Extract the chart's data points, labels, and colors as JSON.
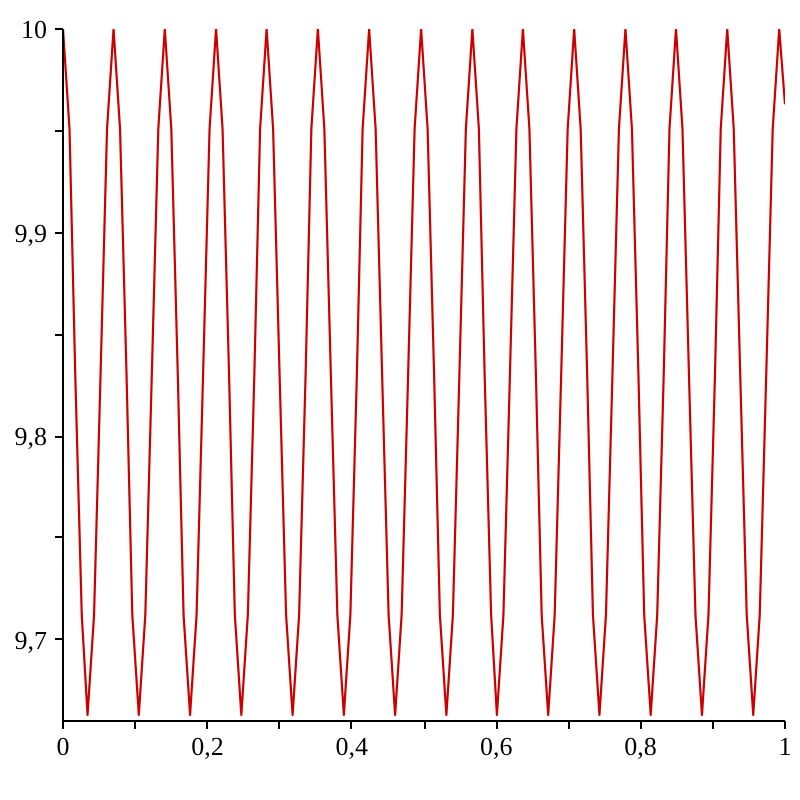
{
  "chart_data": {
    "type": "line",
    "x": [
      0,
      0.009,
      0.017,
      0.026,
      0.034,
      0.043,
      0.052,
      0.061,
      0.07,
      0.079,
      0.088,
      0.096,
      0.105,
      0.114,
      0.123,
      0.132,
      0.141,
      0.15,
      0.159,
      0.167,
      0.176,
      0.185,
      0.194,
      0.203,
      0.212,
      0.221,
      0.23,
      0.238,
      0.247,
      0.256,
      0.265,
      0.273,
      0.282,
      0.291,
      0.3,
      0.309,
      0.318,
      0.327,
      0.336,
      0.344,
      0.353,
      0.362,
      0.371,
      0.38,
      0.389,
      0.398,
      0.407,
      0.415,
      0.424,
      0.433,
      0.442,
      0.451,
      0.46,
      0.469,
      0.478,
      0.487,
      0.496,
      0.505,
      0.514,
      0.522,
      0.531,
      0.54,
      0.549,
      0.558,
      0.567,
      0.576,
      0.584,
      0.593,
      0.601,
      0.61,
      0.619,
      0.628,
      0.637,
      0.646,
      0.655,
      0.663,
      0.672,
      0.681,
      0.69,
      0.699,
      0.708,
      0.717,
      0.726,
      0.734,
      0.743,
      0.752,
      0.761,
      0.77,
      0.779,
      0.788,
      0.797,
      0.805,
      0.814,
      0.823,
      0.832,
      0.84,
      0.849,
      0.858,
      0.867,
      0.876,
      0.885,
      0.894,
      0.903,
      0.911,
      0.92,
      0.929,
      0.938,
      0.947,
      0.956,
      0.965,
      0.974,
      0.983,
      0.992,
      1
    ],
    "series": [
      {
        "color": "#cc0000",
        "values": [
          10,
          9.951,
          9.83,
          9.712,
          9.663,
          9.712,
          9.83,
          9.951,
          10,
          9.951,
          9.83,
          9.712,
          9.663,
          9.712,
          9.83,
          9.951,
          10,
          9.951,
          9.83,
          9.712,
          9.663,
          9.712,
          9.83,
          9.951,
          10,
          9.951,
          9.83,
          9.712,
          9.663,
          9.712,
          9.83,
          9.951,
          10,
          9.951,
          9.83,
          9.712,
          9.663,
          9.712,
          9.83,
          9.951,
          10,
          9.951,
          9.83,
          9.712,
          9.663,
          9.712,
          9.83,
          9.951,
          10,
          9.951,
          9.83,
          9.712,
          9.663,
          9.712,
          9.83,
          9.951,
          10,
          9.951,
          9.83,
          9.712,
          9.663,
          9.712,
          9.83,
          9.951,
          10,
          9.951,
          9.83,
          9.712,
          9.663,
          9.712,
          9.83,
          9.951,
          10,
          9.951,
          9.83,
          9.712,
          9.663,
          9.712,
          9.83,
          9.951,
          10,
          9.951,
          9.83,
          9.712,
          9.663,
          9.712,
          9.83,
          9.951,
          10,
          9.951,
          9.83,
          9.712,
          9.663,
          9.712,
          9.83,
          9.951,
          10,
          9.951,
          9.83,
          9.712,
          9.663,
          9.712,
          9.83,
          9.951,
          10,
          9.951,
          9.83,
          9.712,
          9.663,
          9.712,
          9.83,
          9.951,
          10,
          9.963
        ]
      }
    ],
    "xlim": [
      0,
      1
    ],
    "ylim": [
      9.66,
      10
    ],
    "xticks": [
      0,
      {
        "value": 0.1,
        "label": null
      },
      {
        "value": 0.2,
        "label": "0,2"
      },
      {
        "value": 0.3,
        "label": null
      },
      {
        "value": 0.4,
        "label": "0,4"
      },
      {
        "value": 0.5,
        "label": null
      },
      {
        "value": 0.6,
        "label": "0,6"
      },
      {
        "value": 0.7,
        "label": null
      },
      {
        "value": 0.8,
        "label": "0,8"
      },
      {
        "value": 0.9,
        "label": null
      },
      1
    ],
    "yticks": [
      {
        "value": 9.7,
        "label": "9,7"
      },
      {
        "value": 9.75,
        "label": null
      },
      {
        "value": 9.8,
        "label": "9,8"
      },
      {
        "value": 9.85,
        "label": null
      },
      {
        "value": 9.9,
        "label": "9,9"
      },
      {
        "value": 9.95,
        "label": null
      },
      10
    ],
    "grid": false
  }
}
